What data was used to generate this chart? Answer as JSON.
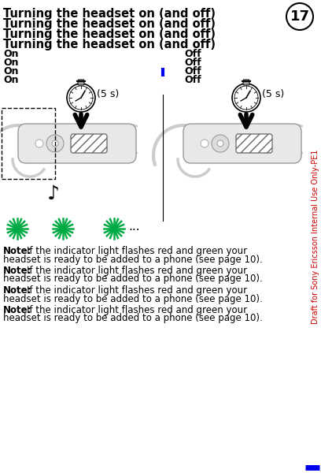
{
  "title": "Turning the headset on (and off)",
  "title_repeats": 4,
  "page_number": "17",
  "on_labels": [
    "On",
    "On",
    "On",
    "On"
  ],
  "off_labels": [
    "Off",
    "Off",
    "Off",
    "Off"
  ],
  "timer_label": "(5 s)",
  "note_bold": "Note:",
  "note_text": "If the indicator light flashes red and green your headset is ready to be added to a phone (see page 10).",
  "note_repeats": 4,
  "draft_text": "Draft for Sony Ericsson Internal Use Only-PE1",
  "bg_color": "#ffffff",
  "text_color": "#000000",
  "green_color": "#00aa44",
  "red_color": "#cc0000",
  "blue_color": "#0000ee",
  "title_fontsize": 10.5,
  "body_fontsize": 9,
  "note_fontsize": 8.5
}
